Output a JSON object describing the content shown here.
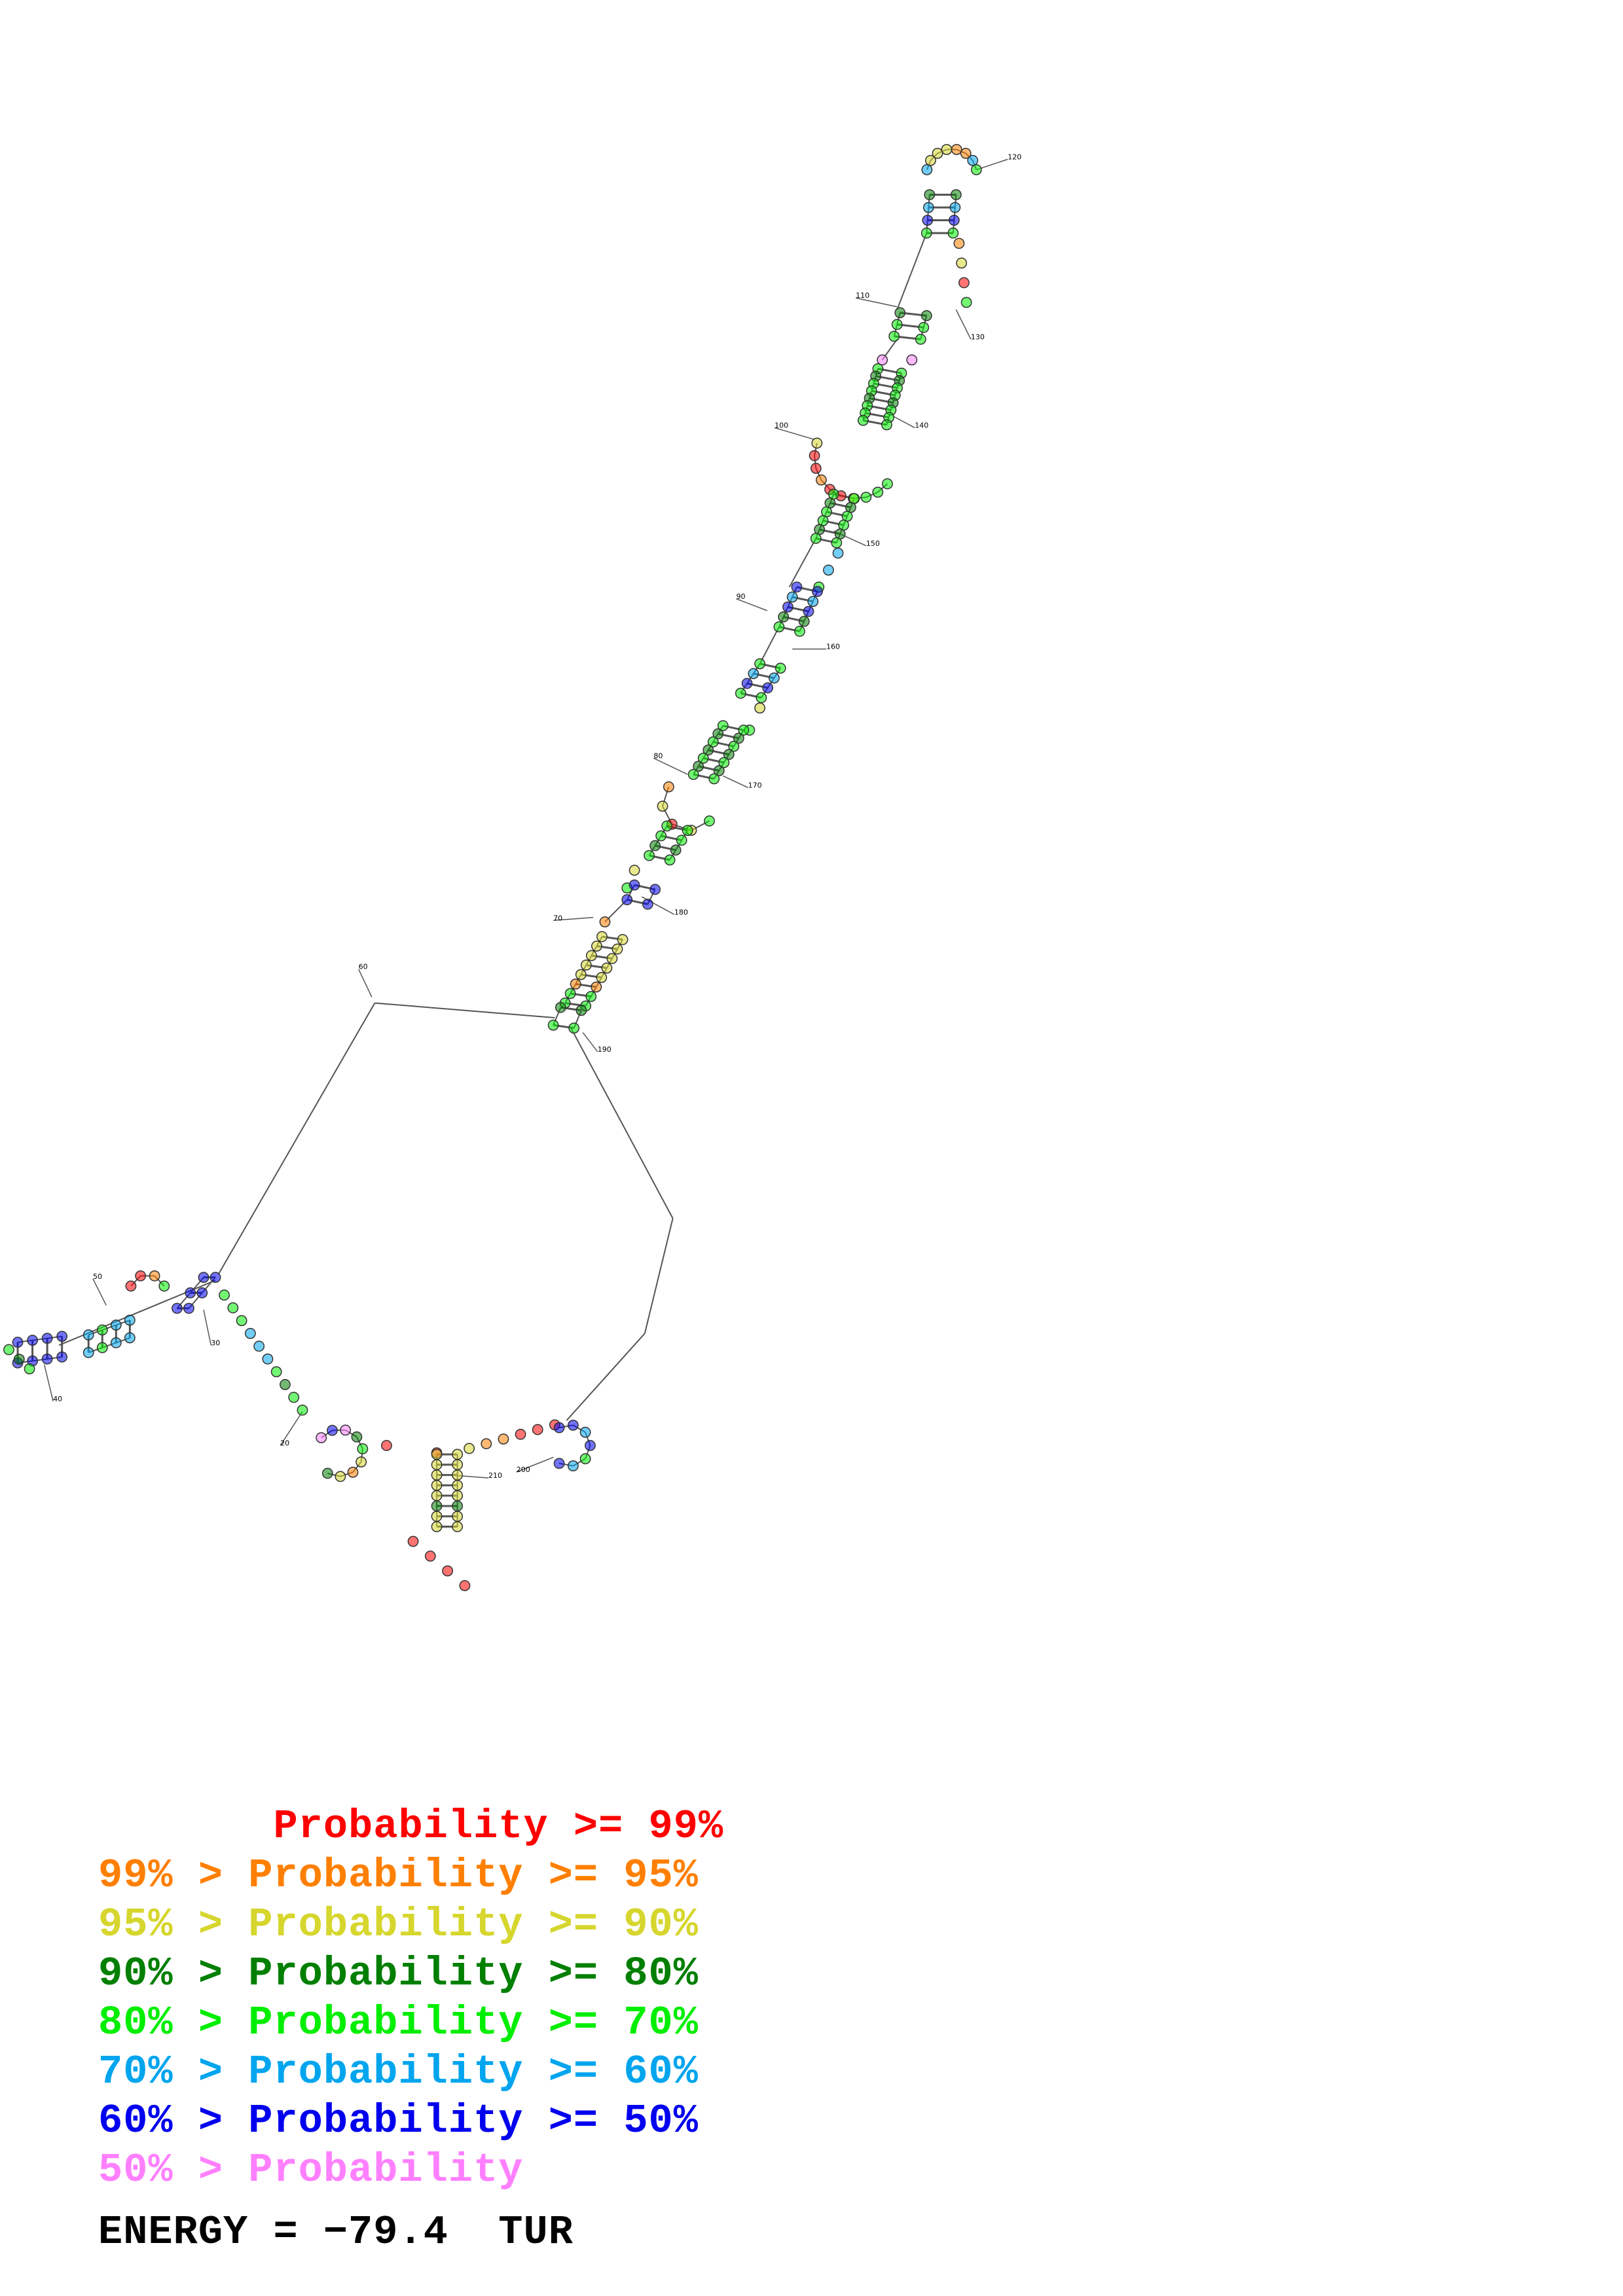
{
  "structure": {
    "position_labels": [
      "20",
      "30",
      "40",
      "50",
      "60",
      "70",
      "80",
      "90",
      "100",
      "110",
      "120",
      "130",
      "140",
      "150",
      "160",
      "170",
      "180",
      "190",
      "200",
      "210"
    ]
  },
  "legend": {
    "entries": [
      {
        "text": "       Probability >= 99%",
        "color": "#ff0000"
      },
      {
        "text": "99% > Probability >= 95%",
        "color": "#ff7f00"
      },
      {
        "text": "95% > Probability >= 90%",
        "color": "#d6d62e"
      },
      {
        "text": "90% > Probability >= 80%",
        "color": "#007f00"
      },
      {
        "text": "80% > Probability >= 70%",
        "color": "#00ee00"
      },
      {
        "text": "70% > Probability >= 60%",
        "color": "#00a5ee"
      },
      {
        "text": "60% > Probability >= 50%",
        "color": "#0000ee"
      },
      {
        "text": "50% > Probability",
        "color": "#ff80ff"
      }
    ],
    "energy": "ENERGY = −79.4  TUR"
  }
}
